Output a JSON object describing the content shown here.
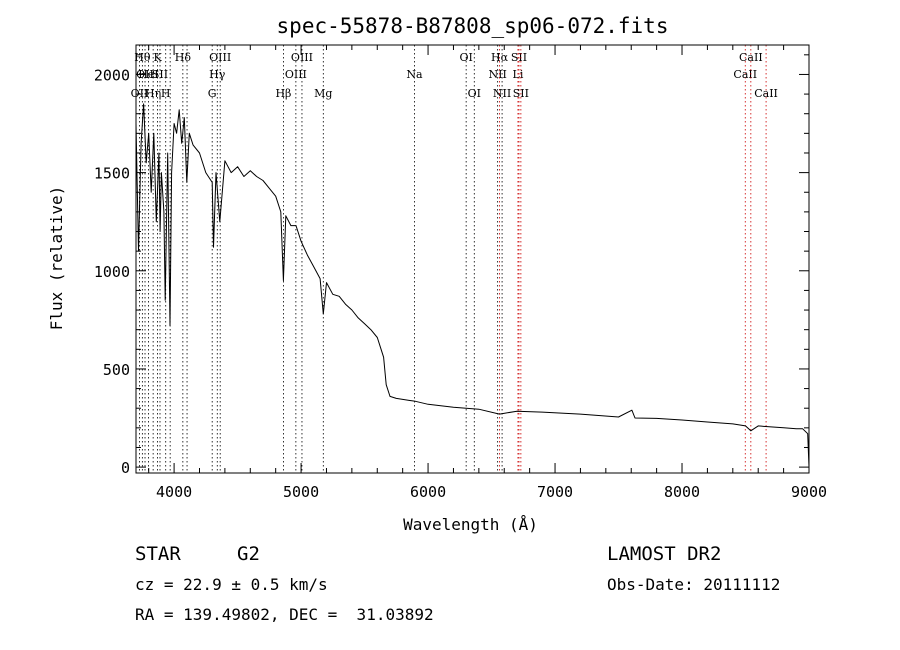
{
  "chart_data": {
    "type": "line",
    "title": "spec-55878-B87808_sp06-072.fits",
    "xlabel": "Wavelength (Å)",
    "ylabel": "Flux (relative)",
    "xlim": [
      3700,
      9000
    ],
    "ylim": [
      -30,
      2150
    ],
    "xticks": [
      4000,
      5000,
      6000,
      7000,
      8000,
      9000
    ],
    "yticks": [
      0,
      500,
      1000,
      1500,
      2000
    ],
    "grid": false,
    "series": [
      {
        "values": [
          [
            3700,
            1750
          ],
          [
            3720,
            1100
          ],
          [
            3740,
            1650
          ],
          [
            3760,
            1850
          ],
          [
            3780,
            1550
          ],
          [
            3800,
            1700
          ],
          [
            3820,
            1400
          ],
          [
            3840,
            1700
          ],
          [
            3860,
            1250
          ],
          [
            3880,
            1600
          ],
          [
            3890,
            1200
          ],
          [
            3900,
            1500
          ],
          [
            3920,
            1300
          ],
          [
            3930,
            850
          ],
          [
            3950,
            1600
          ],
          [
            3968,
            720
          ],
          [
            3980,
            1500
          ],
          [
            4000,
            1750
          ],
          [
            4020,
            1700
          ],
          [
            4040,
            1820
          ],
          [
            4060,
            1650
          ],
          [
            4080,
            1780
          ],
          [
            4100,
            1450
          ],
          [
            4120,
            1700
          ],
          [
            4150,
            1640
          ],
          [
            4200,
            1600
          ],
          [
            4250,
            1500
          ],
          [
            4300,
            1450
          ],
          [
            4310,
            1120
          ],
          [
            4330,
            1500
          ],
          [
            4360,
            1250
          ],
          [
            4400,
            1560
          ],
          [
            4450,
            1500
          ],
          [
            4500,
            1530
          ],
          [
            4550,
            1480
          ],
          [
            4600,
            1510
          ],
          [
            4650,
            1480
          ],
          [
            4700,
            1460
          ],
          [
            4750,
            1420
          ],
          [
            4800,
            1380
          ],
          [
            4840,
            1300
          ],
          [
            4861,
            950
          ],
          [
            4880,
            1280
          ],
          [
            4920,
            1230
          ],
          [
            4960,
            1230
          ],
          [
            5000,
            1150
          ],
          [
            5050,
            1080
          ],
          [
            5100,
            1020
          ],
          [
            5150,
            960
          ],
          [
            5175,
            780
          ],
          [
            5200,
            940
          ],
          [
            5250,
            880
          ],
          [
            5300,
            870
          ],
          [
            5350,
            830
          ],
          [
            5400,
            800
          ],
          [
            5450,
            760
          ],
          [
            5500,
            730
          ],
          [
            5550,
            700
          ],
          [
            5600,
            660
          ],
          [
            5650,
            560
          ],
          [
            5670,
            420
          ],
          [
            5700,
            360
          ],
          [
            5750,
            350
          ],
          [
            5800,
            345
          ],
          [
            5850,
            340
          ],
          [
            5900,
            335
          ],
          [
            6000,
            320
          ],
          [
            6200,
            305
          ],
          [
            6400,
            295
          ],
          [
            6563,
            270
          ],
          [
            6700,
            285
          ],
          [
            6900,
            280
          ],
          [
            7200,
            270
          ],
          [
            7500,
            255
          ],
          [
            7605,
            290
          ],
          [
            7630,
            250
          ],
          [
            7800,
            248
          ],
          [
            8000,
            240
          ],
          [
            8200,
            230
          ],
          [
            8400,
            220
          ],
          [
            8500,
            210
          ],
          [
            8542,
            185
          ],
          [
            8600,
            210
          ],
          [
            8700,
            205
          ],
          [
            8800,
            200
          ],
          [
            8900,
            195
          ],
          [
            8950,
            195
          ],
          [
            8990,
            170
          ],
          [
            9000,
            0
          ]
        ]
      }
    ],
    "lines": [
      {
        "wl": 3727,
        "label": "OII",
        "row": 2,
        "color": "#000000"
      },
      {
        "wl": 3750,
        "label": "Hθ",
        "row": 0,
        "color": "#000000"
      },
      {
        "wl": 3771,
        "label": "OII",
        "row": 1,
        "color": "#000000"
      },
      {
        "wl": 3798,
        "label": "HeI",
        "row": 1,
        "color": "#000000"
      },
      {
        "wl": 3835,
        "label": "Hη",
        "row": 2,
        "color": "#000000"
      },
      {
        "wl": 3870,
        "label": "K",
        "row": 0,
        "color": "#000000"
      },
      {
        "wl": 3889,
        "label": "SII",
        "row": 1,
        "color": "#000000"
      },
      {
        "wl": 3934,
        "label": "H",
        "row": 2,
        "color": "#000000"
      },
      {
        "wl": 3969,
        "label": "",
        "row": 0,
        "color": "#000000"
      },
      {
        "wl": 4069,
        "label": "Hδ",
        "row": 0,
        "color": "#000000"
      },
      {
        "wl": 4102,
        "label": "",
        "row": 0,
        "color": "#000000"
      },
      {
        "wl": 4300,
        "label": "G",
        "row": 2,
        "color": "#000000"
      },
      {
        "wl": 4340,
        "label": "Hγ",
        "row": 1,
        "color": "#000000"
      },
      {
        "wl": 4363,
        "label": "OIII",
        "row": 0,
        "color": "#000000"
      },
      {
        "wl": 4861,
        "label": "Hβ",
        "row": 2,
        "color": "#000000"
      },
      {
        "wl": 4959,
        "label": "OIII",
        "row": 1,
        "color": "#000000"
      },
      {
        "wl": 5007,
        "label": "OIII",
        "row": 0,
        "color": "#000000"
      },
      {
        "wl": 5175,
        "label": "Mg",
        "row": 2,
        "color": "#000000"
      },
      {
        "wl": 5893,
        "label": "Na",
        "row": 1,
        "color": "#000000"
      },
      {
        "wl": 6300,
        "label": "OI",
        "row": 0,
        "color": "#000000"
      },
      {
        "wl": 6364,
        "label": "OI",
        "row": 2,
        "color": "#000000"
      },
      {
        "wl": 6548,
        "label": "NII",
        "row": 1,
        "color": "#000000"
      },
      {
        "wl": 6563,
        "label": "Hα",
        "row": 0,
        "color": "#cc0000"
      },
      {
        "wl": 6583,
        "label": "NII",
        "row": 2,
        "color": "#000000"
      },
      {
        "wl": 6708,
        "label": "Li",
        "row": 1,
        "color": "#cc0000"
      },
      {
        "wl": 6716,
        "label": "SII",
        "row": 0,
        "color": "#cc0000"
      },
      {
        "wl": 6731,
        "label": "SII",
        "row": 2,
        "color": "#cc0000"
      },
      {
        "wl": 8498,
        "label": "CaII",
        "row": 1,
        "color": "#cc0000"
      },
      {
        "wl": 8542,
        "label": "CaII",
        "row": 0,
        "color": "#cc0000"
      },
      {
        "wl": 8662,
        "label": "CaII",
        "row": 2,
        "color": "#cc0000"
      }
    ]
  },
  "info": {
    "object_class": "STAR",
    "subclass": "G2",
    "survey": "LAMOST DR2",
    "redshift": "cz = 22.9 ± 0.5 km/s",
    "obs_date": "Obs-Date: 20111112",
    "coords": "RA = 139.49802, DEC =  31.03892"
  }
}
